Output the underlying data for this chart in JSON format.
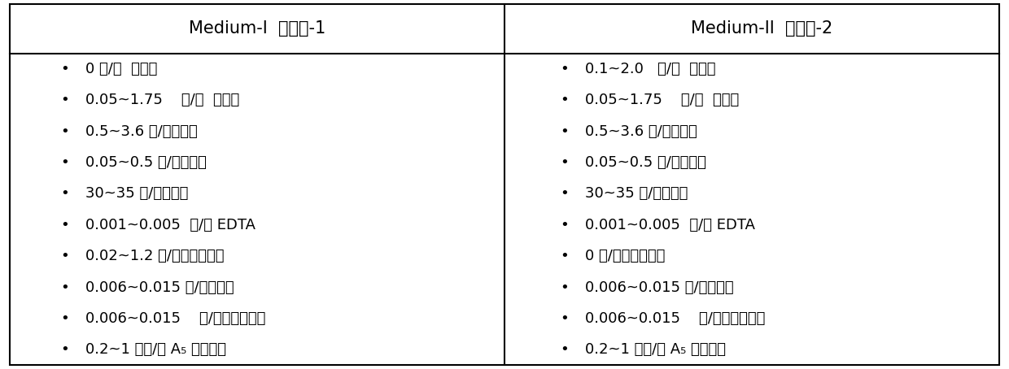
{
  "col1_header": "Medium-I  培养基-1",
  "col2_header": "Medium-II  培养基-2",
  "col1_items": [
    "0 克/升  硢酸钓",
    "0.05~1.75    克/升  硢酸钓",
    "0.5~3.6 克/升碳酸钓",
    "0.05~0.5 克/升氯化钓",
    "30~35 克/升氯化钓",
    "0.001~0.005  克/升 EDTA",
    "0.02~1.2 克/升磷酸氢二钒",
    "0.006~0.015 克/升柠檬酸",
    "0.006~0.015    克/升柠檬酸铁锒",
    "0.2~1 毫升/升 A₅ 微量元素"
  ],
  "col2_items": [
    "0.1~2.0   克/升  硢酸钓",
    "0.05~1.75    克/升  硢酸钓",
    "0.5~3.6 克/升碳酸钓",
    "0.05~0.5 克/升氯化钓",
    "30~35 克/升氯化钓",
    "0.001~0.005  克/升 EDTA",
    "0 克/升磷酸氢二钒",
    "0.006~0.015 克/升柠檬酸",
    "0.006~0.015    克/升柠檬酸铁锒",
    "0.2~1 毫升/升 A₅ 微量元素"
  ],
  "bg_color": "#ffffff",
  "border_color": "#000000",
  "header_fontsize": 15,
  "item_fontsize": 13,
  "bullet": "•"
}
